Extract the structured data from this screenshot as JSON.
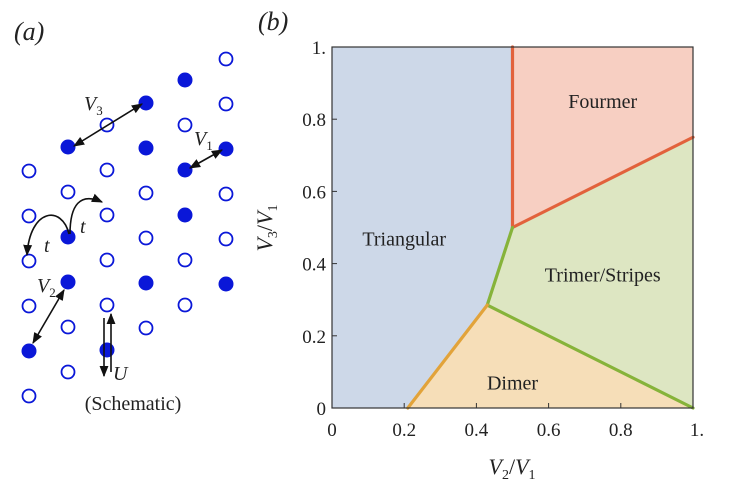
{
  "panel_a": {
    "label": "(a)",
    "caption": "(Schematic)",
    "colors": {
      "site": "#0a17d8",
      "arrow": "#111111"
    },
    "sites": [
      {
        "col": 0,
        "rows": [
          "open",
          "open",
          "open",
          "open",
          "filled",
          "open"
        ]
      },
      {
        "col": 1,
        "rows": [
          "filled",
          "open",
          "filled",
          "filled",
          "open",
          "open"
        ]
      },
      {
        "col": 2,
        "rows": [
          "open",
          "open",
          "open",
          "open",
          "open",
          "filled"
        ]
      },
      {
        "col": 3,
        "rows": [
          "filled",
          "filled",
          "open",
          "open",
          "filled",
          "open"
        ]
      },
      {
        "col": 4,
        "rows": [
          "filled",
          "open",
          "filled",
          "filled",
          "open",
          "open"
        ]
      },
      {
        "col": 5,
        "rows": [
          "open",
          "open",
          "filled",
          "open",
          "open",
          "filled"
        ]
      }
    ],
    "labels": {
      "v3": {
        "main": "V",
        "sub": "3"
      },
      "v1": {
        "main": "V",
        "sub": "1"
      },
      "v2": {
        "main": "V",
        "sub": "2"
      },
      "t1": "t",
      "t2": "t",
      "u": "U"
    }
  },
  "panel_b": {
    "label": "(b)"
  },
  "chart_data": {
    "type": "area",
    "title": "",
    "xlabel": {
      "a": "V",
      "a_sub": "2",
      "slash": "/",
      "b": "V",
      "b_sub": "1"
    },
    "ylabel": {
      "a": "V",
      "a_sub": "3",
      "slash": "/",
      "b": "V",
      "b_sub": "1"
    },
    "xlim": [
      0,
      1
    ],
    "ylim": [
      0,
      1
    ],
    "xticks": [
      "0",
      "0.2",
      "0.4",
      "0.6",
      "0.8",
      "1."
    ],
    "xtick_values": [
      0,
      0.2,
      0.4,
      0.6,
      0.8,
      1
    ],
    "yticks": [
      "0",
      "0.2",
      "0.4",
      "0.6",
      "0.8",
      "1."
    ],
    "ytick_values": [
      0,
      0.2,
      0.4,
      0.6,
      0.8,
      1
    ],
    "regions": [
      {
        "name": "Triangular",
        "color": "#cdd8e8",
        "label_at": [
          0.2,
          0.47
        ],
        "polygon": [
          [
            0,
            0
          ],
          [
            0.21,
            0
          ],
          [
            0.43,
            0.285
          ],
          [
            0.5,
            0.5
          ],
          [
            0.5,
            1
          ],
          [
            0,
            1
          ]
        ]
      },
      {
        "name": "Fourmer",
        "color": "#f7cfc2",
        "label_at": [
          0.75,
          0.85
        ],
        "polygon": [
          [
            0.5,
            0.5
          ],
          [
            0.5,
            1
          ],
          [
            1,
            1
          ],
          [
            1,
            0.75
          ]
        ]
      },
      {
        "name": "Trimer/Stripes",
        "color": "#dde6c2",
        "label_at": [
          0.75,
          0.37
        ],
        "polygon": [
          [
            0.43,
            0.285
          ],
          [
            0.5,
            0.5
          ],
          [
            1,
            0.75
          ],
          [
            1,
            0
          ]
        ]
      },
      {
        "name": "Dimer",
        "color": "#f6deb8",
        "label_at": [
          0.5,
          0.07
        ],
        "polygon": [
          [
            0.21,
            0
          ],
          [
            0.43,
            0.285
          ],
          [
            1,
            0
          ]
        ]
      }
    ],
    "boundaries": [
      {
        "between": "Triangular/Fourmer",
        "color": "#e2623c",
        "points": [
          [
            0.5,
            0.5
          ],
          [
            0.5,
            1
          ]
        ]
      },
      {
        "between": "Fourmer/Trimer",
        "color": "#e2623c",
        "points": [
          [
            0.5,
            0.5
          ],
          [
            1,
            0.75
          ]
        ]
      },
      {
        "between": "Triangular/Trimer",
        "color": "#86b33a",
        "points": [
          [
            0.43,
            0.285
          ],
          [
            0.5,
            0.5
          ]
        ]
      },
      {
        "between": "Dimer/Trimer",
        "color": "#86b33a",
        "points": [
          [
            0.43,
            0.285
          ],
          [
            1,
            0
          ]
        ]
      },
      {
        "between": "Triangular/Dimer",
        "color": "#e2a33a",
        "points": [
          [
            0.21,
            0
          ],
          [
            0.43,
            0.285
          ]
        ]
      }
    ]
  }
}
